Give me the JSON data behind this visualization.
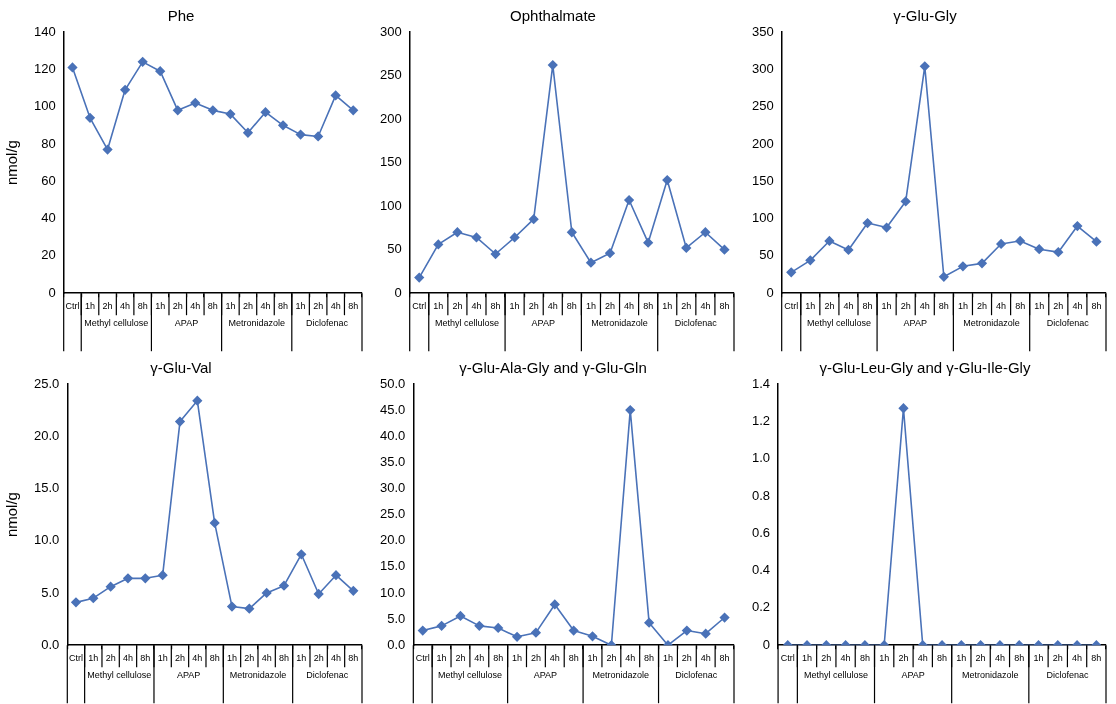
{
  "chart_data": [
    {
      "type": "line",
      "title": "Phe",
      "ylabel": "nmol/g",
      "categories": [
        "Ctrl",
        "1h",
        "2h",
        "4h",
        "8h",
        "1h",
        "2h",
        "4h",
        "8h",
        "1h",
        "2h",
        "4h",
        "8h",
        "1h",
        "2h",
        "4h",
        "8h"
      ],
      "series": [
        {
          "color": "#4a72b8",
          "values": [
            121,
            94,
            77,
            109,
            124,
            119,
            98,
            102,
            98,
            96,
            86,
            97,
            90,
            85,
            84,
            106,
            98
          ]
        }
      ],
      "ylim": [
        0,
        140
      ],
      "yticks": [
        0,
        20,
        40,
        60,
        80,
        100,
        120,
        140
      ],
      "marker": "diamond",
      "annotations": [
        "Methyl cellulose",
        "APAP",
        "Metronidazole",
        "Diclofenac"
      ]
    },
    {
      "type": "line",
      "title": "Ophthalmate",
      "categories": [
        "Ctrl",
        "1h",
        "2h",
        "4h",
        "8h",
        "1h",
        "2h",
        "4h",
        "8h",
        "1h",
        "2h",
        "4h",
        "8h",
        "1h",
        "2h",
        "4h",
        "8h"
      ],
      "series": [
        {
          "color": "#4a72b8",
          "values": [
            18,
            56,
            70,
            64,
            45,
            64,
            85,
            262,
            70,
            35,
            46,
            107,
            58,
            130,
            52,
            70,
            50
          ]
        }
      ],
      "ylim": [
        0,
        300
      ],
      "yticks": [
        0,
        50,
        100,
        150,
        200,
        250,
        300
      ],
      "marker": "diamond",
      "annotations": [
        "Methyl cellulose",
        "APAP",
        "Metronidazole",
        "Diclofenac"
      ]
    },
    {
      "type": "line",
      "title": "γ-Glu-Gly",
      "categories": [
        "Ctrl",
        "1h",
        "2h",
        "4h",
        "8h",
        "1h",
        "2h",
        "4h",
        "8h",
        "1h",
        "2h",
        "4h",
        "8h",
        "1h",
        "2h",
        "4h",
        "8h"
      ],
      "series": [
        {
          "color": "#4a72b8",
          "values": [
            28,
            44,
            70,
            58,
            94,
            88,
            123,
            304,
            22,
            36,
            40,
            66,
            70,
            59,
            55,
            90,
            69
          ]
        }
      ],
      "ylim": [
        0,
        350
      ],
      "yticks": [
        0,
        50,
        100,
        150,
        200,
        250,
        300,
        350
      ],
      "marker": "diamond",
      "annotations": [
        "Methyl cellulose",
        "APAP",
        "Metronidazole",
        "Diclofenac"
      ]
    },
    {
      "type": "line",
      "title": "γ-Glu-Val",
      "ylabel": "nmol/g",
      "categories": [
        "Ctrl",
        "1h",
        "2h",
        "4h",
        "8h",
        "1h",
        "2h",
        "4h",
        "8h",
        "1h",
        "2h",
        "4h",
        "8h",
        "1h",
        "2h",
        "4h",
        "8h"
      ],
      "series": [
        {
          "color": "#4a72b8",
          "values": [
            4.1,
            4.5,
            5.6,
            6.4,
            6.4,
            6.7,
            21.4,
            23.4,
            11.7,
            3.7,
            3.5,
            5.0,
            5.7,
            8.7,
            4.9,
            6.7,
            5.2
          ]
        }
      ],
      "ylim": [
        0,
        25
      ],
      "yticks": [
        {
          "value": 0,
          "label": "0.0"
        },
        {
          "value": 5,
          "label": "5.0"
        },
        {
          "value": 10,
          "label": "10.0"
        },
        {
          "value": 15,
          "label": "15.0"
        },
        {
          "value": 20,
          "label": "20.0"
        },
        {
          "value": 25,
          "label": "25.0"
        }
      ],
      "marker": "diamond",
      "annotations": [
        "Methyl cellulose",
        "APAP",
        "Metronidazole",
        "Diclofenac"
      ]
    },
    {
      "type": "line",
      "title": "γ-Glu-Ala-Gly and γ-Glu-Gln",
      "categories": [
        "Ctrl",
        "1h",
        "2h",
        "4h",
        "8h",
        "1h",
        "2h",
        "4h",
        "8h",
        "1h",
        "2h",
        "4h",
        "8h",
        "1h",
        "2h",
        "4h",
        "8h"
      ],
      "series": [
        {
          "color": "#4a72b8",
          "values": [
            2.8,
            3.7,
            5.6,
            3.7,
            3.3,
            1.6,
            2.4,
            7.8,
            2.8,
            1.7,
            0,
            45,
            4.3,
            0,
            2.8,
            2.2,
            5.3
          ]
        }
      ],
      "ylim": [
        0,
        50
      ],
      "yticks": [
        {
          "value": 0,
          "label": "0.0"
        },
        {
          "value": 5,
          "label": "5.0"
        },
        {
          "value": 10,
          "label": "10.0"
        },
        {
          "value": 15,
          "label": "15.0"
        },
        {
          "value": 20,
          "label": "20.0"
        },
        {
          "value": 25,
          "label": "25.0"
        },
        {
          "value": 30,
          "label": "30.0"
        },
        {
          "value": 35,
          "label": "35.0"
        },
        {
          "value": 40,
          "label": "40.0"
        },
        {
          "value": 45,
          "label": "45.0"
        },
        {
          "value": 50,
          "label": "50.0"
        }
      ],
      "marker": "diamond",
      "annotations": [
        "Methyl cellulose",
        "APAP",
        "Metronidazole",
        "Diclofenac"
      ]
    },
    {
      "type": "line",
      "title": "γ-Glu-Leu-Gly and γ-Glu-Ile-Gly",
      "categories": [
        "Ctrl",
        "1h",
        "2h",
        "4h",
        "8h",
        "1h",
        "2h",
        "4h",
        "8h",
        "1h",
        "2h",
        "4h",
        "8h",
        "1h",
        "2h",
        "4h",
        "8h"
      ],
      "series": [
        {
          "color": "#4a72b8",
          "values": [
            0,
            0,
            0,
            0,
            0,
            0,
            1.27,
            0,
            0,
            0,
            0,
            0,
            0,
            0,
            0,
            0,
            0
          ]
        }
      ],
      "ylim": [
        0,
        1.4
      ],
      "yticks": [
        0,
        0.2,
        0.4,
        0.6,
        0.8,
        {
          "value": 1,
          "label": "1.0"
        },
        1.2,
        1.4
      ],
      "marker": "diamond",
      "annotations": [
        "Methyl cellulose",
        "APAP",
        "Metronidazole",
        "Diclofenac"
      ]
    }
  ]
}
